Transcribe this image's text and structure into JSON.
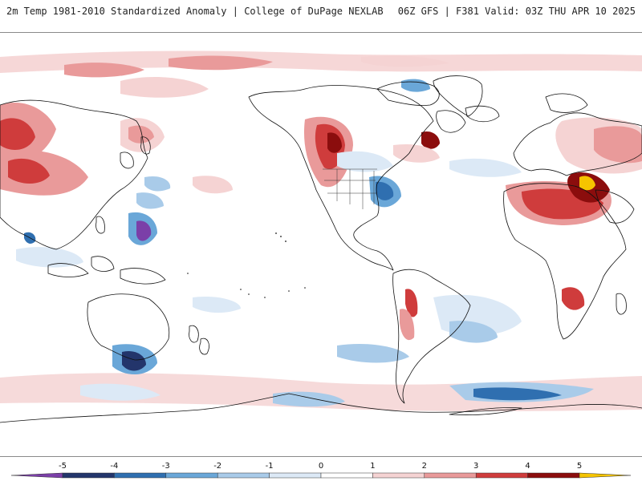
{
  "header": {
    "title_left": "2m Temp 1981-2010 Standardized Anomaly | College of DuPage NEXLAB",
    "title_right": "06Z GFS | F381 Valid: 03Z THU APR 10 2025"
  },
  "colorbar": {
    "ticks": [
      "-5",
      "-4",
      "-3",
      "-2",
      "-1",
      "0",
      "1",
      "2",
      "3",
      "4",
      "5"
    ],
    "colors": [
      "#7b3fa8",
      "#23356b",
      "#2f6fb0",
      "#6aa7d8",
      "#a9cbe9",
      "#dce9f6",
      "#ffffff",
      "#f5d3d3",
      "#e99a9a",
      "#cf3c3c",
      "#8b0d0d",
      "#f5c400"
    ]
  },
  "map": {
    "projection": "cylindrical-equidistant",
    "central_longitude": -150,
    "field": "2m temperature standardized anomaly"
  }
}
